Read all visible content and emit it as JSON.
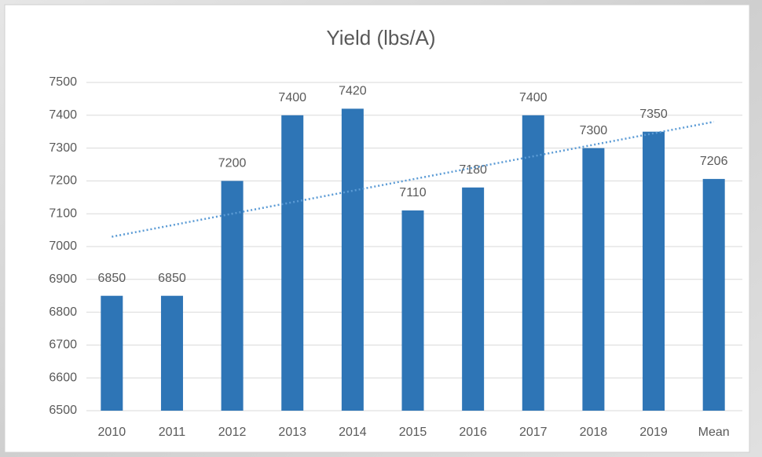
{
  "chart_data": {
    "type": "bar",
    "title": "Yield (lbs/A)",
    "categories": [
      "2010",
      "2011",
      "2012",
      "2013",
      "2014",
      "2015",
      "2016",
      "2017",
      "2018",
      "2019",
      "Mean"
    ],
    "values": [
      6850,
      6850,
      7200,
      7400,
      7420,
      7110,
      7180,
      7400,
      7300,
      7350,
      7206
    ],
    "color": "#2e75b6",
    "ylim": [
      6500,
      7500
    ],
    "yticks": [
      6500,
      6600,
      6700,
      6800,
      6900,
      7000,
      7100,
      7200,
      7300,
      7400,
      7500
    ],
    "grid": true,
    "trendline": [
      7030,
      7380
    ],
    "trendline_color": "#5b9bd5"
  }
}
